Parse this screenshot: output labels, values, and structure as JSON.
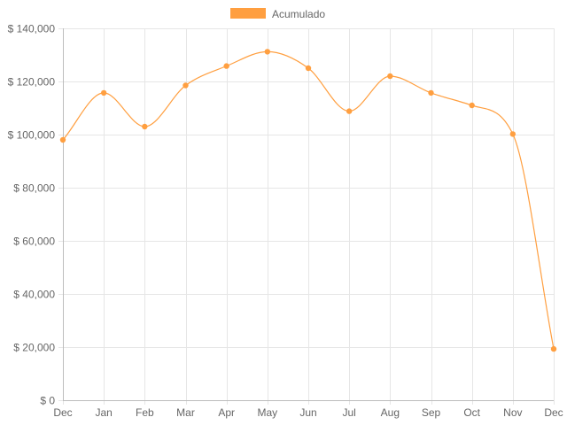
{
  "chart_data": {
    "type": "line",
    "categories": [
      "Dec",
      "Jan",
      "Feb",
      "Mar",
      "Apr",
      "May",
      "Jun",
      "Jul",
      "Aug",
      "Sep",
      "Oct",
      "Nov",
      "Dec"
    ],
    "series": [
      {
        "name": "Acumulado",
        "values": [
          98000,
          115700,
          103000,
          118500,
          125800,
          131200,
          125000,
          108800,
          122000,
          115700,
          111000,
          100200,
          19300
        ],
        "color": "#ff9f40"
      }
    ],
    "ylim": [
      0,
      140000
    ],
    "y_ticks": [
      0,
      20000,
      40000,
      60000,
      80000,
      100000,
      120000,
      140000
    ],
    "y_tick_labels": [
      "$ 0",
      "$ 20,000",
      "$ 40,000",
      "$ 60,000",
      "$ 80,000",
      "$ 100,000",
      "$ 120,000",
      "$ 140,000"
    ],
    "title": "",
    "xlabel": "",
    "ylabel": "",
    "grid": true,
    "legend_position": "top-center",
    "line_smooth": true
  }
}
